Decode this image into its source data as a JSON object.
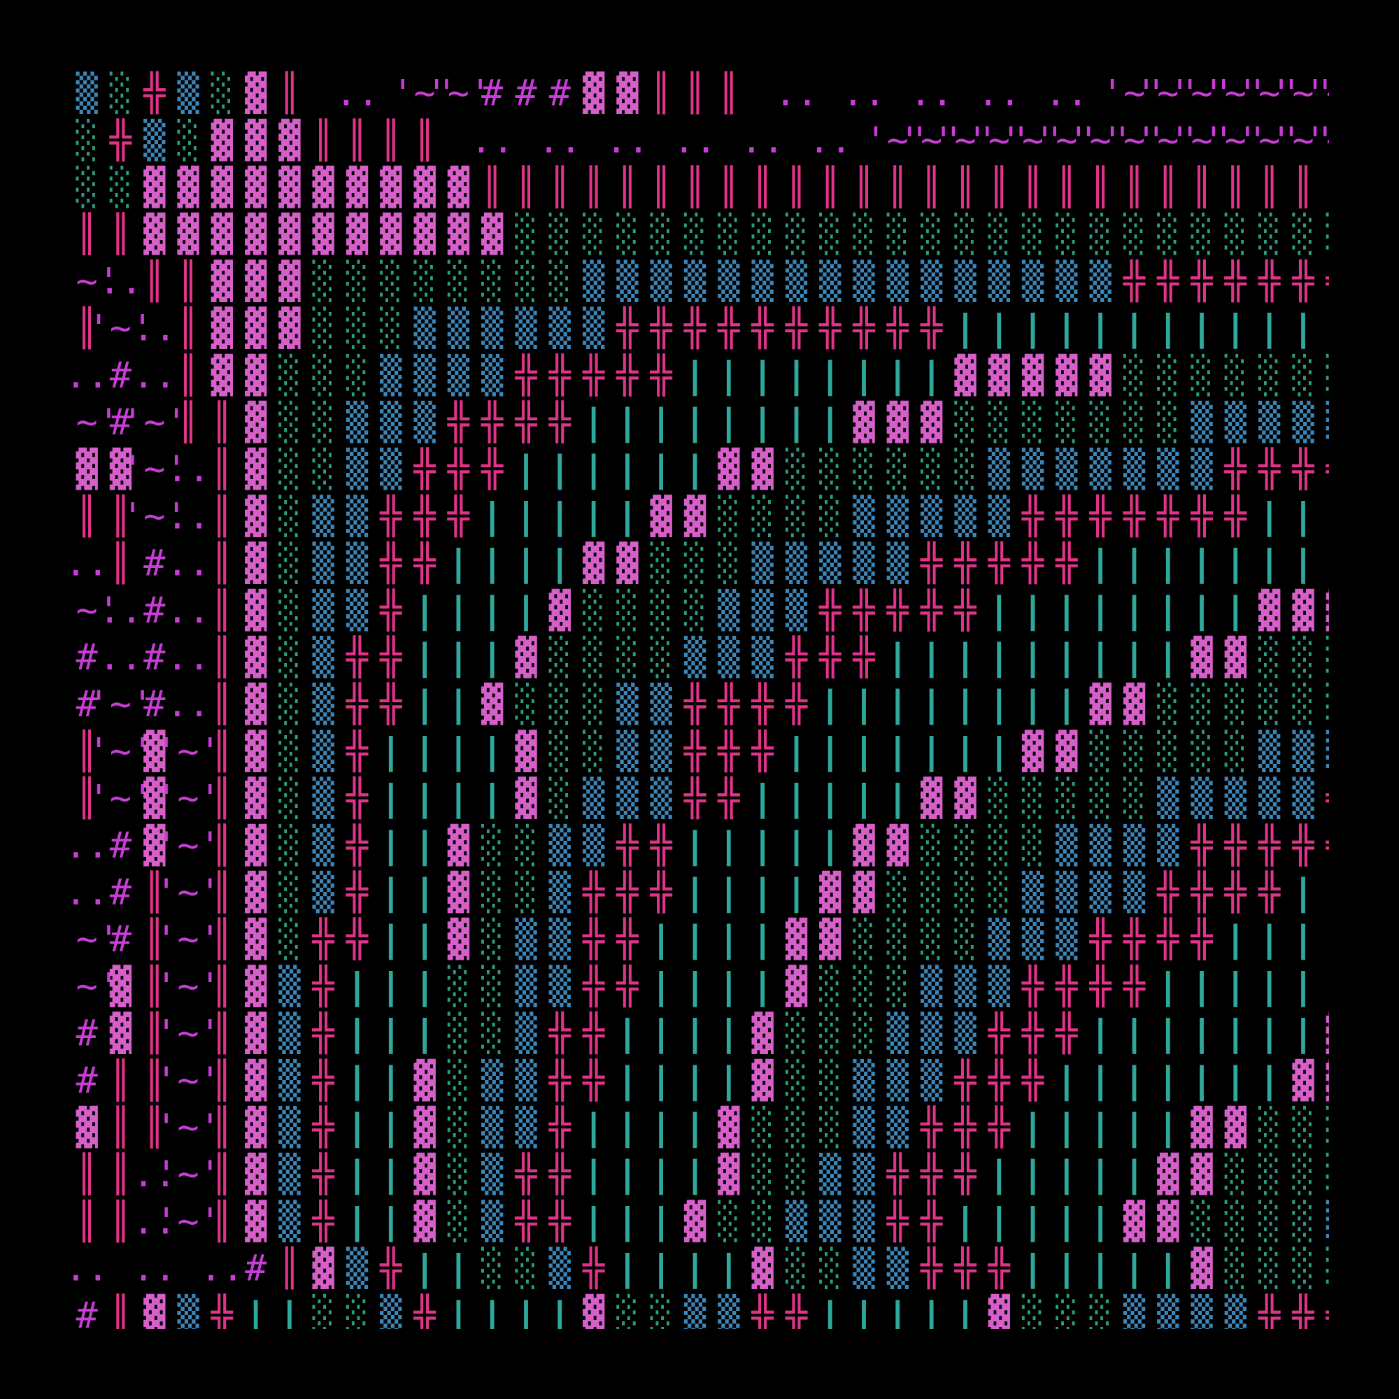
{
  "artwork": {
    "kind": "ascii-art",
    "background": "#000000",
    "palette": {
      "H": "#d65fc9",
      "G": "#2e9c80",
      "B": "#3d86b8",
      "X": "#e2338b",
      "P": "#c83dd6",
      "I": "#e2338b",
      "T": "#2fa89c",
      "D": "#c83dd6",
      "S": "#c83dd6"
    },
    "glyphs": {
      "H": "▓",
      "G": "░",
      "B": "▒",
      "X": "╬",
      "P": "#",
      "I": "║",
      "T": "|",
      "D": "..",
      "S": "'~'"
    },
    "rows": [
      "BGXBGHI.D.SSPPPHHIII.D.D.D.D.D.SSSSSSSSSPPPPPPP",
      "GXBGHHHIIII.D.D.D.D.D.D.SSSSSSSSSSSSSSSPPPPPPPPPPP",
      "GGHHHHHHHHHHIIIIIIIIIIIIIIIIIIIIIIIIIIIIII",
      "IIHHHHHHHHHHHGGGGGGGGGGGGGGGGGGGGGGGGGGGGG",
      "SDIIHHHGGGGGGGGBBBBBBBBBBBBBBBBXXXXXXXX",
      "ISDIHHHGGGBBBBBBXXXXXXXXXXTTTTTTTTTTTTTTTT",
      "DPDIHHGGGBBBBXXXXXTTTTTTTTHHHHHGGGGGGGGG",
      "SPSIIHGGBBBXXXXTTTTTTTTHHHGGGGGGGBBBBBBBB",
      "HHSDIHGGBBXXXTTTTTTHHGGGGGGBBBBBBBXXXXXX",
      "IISDIHGBBXXXTTTTTHHGGGGBBBBBXXXXXXXTTTTTT",
      "DIPDIHGBBXXTTTTHHGGGBBBBBXXXXXTTTTTTTTHHH",
      "SDPDIHGBBXTTTTHGGGGBBBXXXXXTTTTTTTTHHHGGG",
      "PDPDIHGBXXTTTHGGGGBBBXXXTTTTTTTTTHHGGGGGGGBB",
      "PSPDIHGBXXTTHGGGBBXXXXTTTTTTTTHHGGGGGGBBBBBB",
      "ISHSIHGBXTTTTHGGBBXXXTTTTTTTHHGGGGGBBBBBXXX",
      "ISHSIHGBXTTTTHGBBBXXTTTTTHHGGGGGBBBBBXXXXX",
      "DPHSIHGBXTTHGGBBXXTTTTTHHGGGGBBBBXXXXXTTTT",
      "DPISIHGBXTTHGGBXXXTTTTHHGGGGBBBBXXXXTTTTTTTT",
      "SPISIHGXXTTHGBBXXTTTTHHGGGGBBBXXXXTTTTTTTHH",
      "SHISIHBXTTTGGBBXXTTTTHGGGBBBXXXXTTTTTTTHHGGG",
      "PHISIHBXTTTGGBXXTTTTHGGGBBBXXXTTTTTTTHHGGGGG",
      "PIISIHBXTTHGBBXXTTTTHGGBBBXXXTTTTTTTHHGGGGGBB",
      "HIISIHBXTTHGBBXTTTTHGGGBBXXXTTTTTHHGGGGGBBBB",
      "IIDSIHBXTTHGBXXTTTTHGGBBXXXTTTTTHHGGGGBBBBBB",
      "IIDSIHBXTTHGBXXTTTHGGBBBXXTTTTTHHGGGGBBBBBBXX",
      "D.D.DPIHBXTTGGBXTTTTHGGBBXXXTTTTTHGGGGBBBBXXXX",
      "PIHBXTTGGBXTTTTHGGBBXXTTTTTHGGGBBBBXXXX"
    ]
  }
}
